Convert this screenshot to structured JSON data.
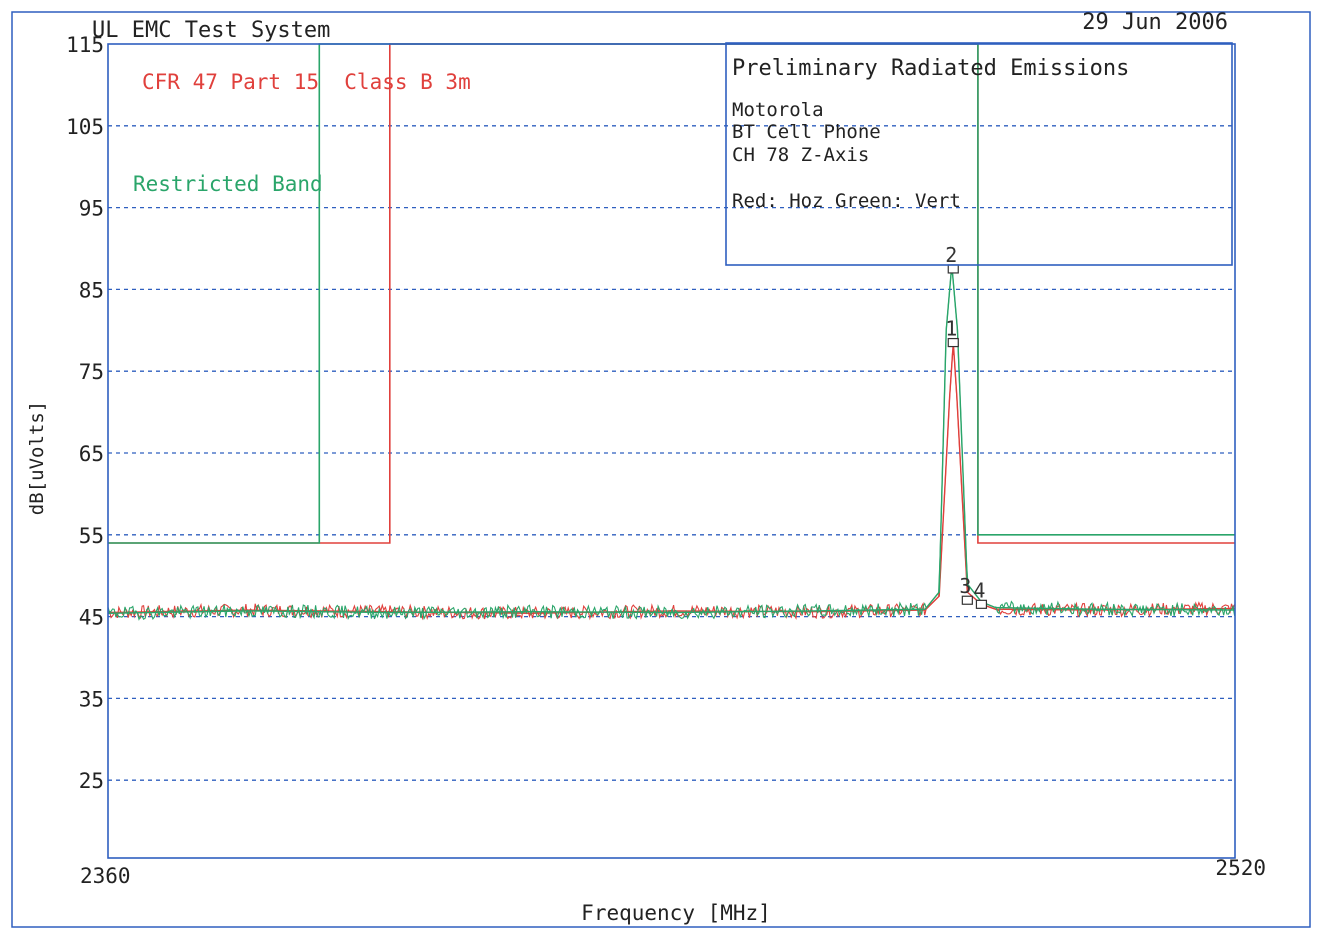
{
  "header": {
    "system_title": "UL EMC Test System",
    "date": "29 Jun 2006"
  },
  "info_box": {
    "title": "Preliminary Radiated Emissions",
    "lines": [
      "Motorola",
      "BT Cell Phone",
      "CH 78 Z-Axis"
    ],
    "legend_text": "Red: Hoz Green: Vert"
  },
  "annotations": {
    "limit_label": "CFR 47 Part 15  Class B 3m",
    "restricted_label": "Restricted Band"
  },
  "colors": {
    "frame": "#2f5fbf",
    "grid": "#2f5fbf",
    "red": "#e0403c",
    "green": "#2aa56a",
    "text": "#222222"
  },
  "chart_data": {
    "type": "line",
    "title": "Preliminary Radiated Emissions",
    "xlabel": "Frequency [MHz]",
    "ylabel": "dB[uVolts]",
    "xlim": [
      2360,
      2520
    ],
    "ylim": [
      15,
      115
    ],
    "x_tick_labels": [
      "2360",
      "2520"
    ],
    "y_ticks": [
      115,
      105,
      95,
      85,
      75,
      65,
      55,
      45,
      35,
      25
    ],
    "grid": "horizontal dashed",
    "series": [
      {
        "name": "Hoz",
        "color": "red",
        "x": [
          2360,
          2380,
          2400,
          2420,
          2440,
          2460,
          2476,
          2478,
          2479.5,
          2480,
          2480.5,
          2482,
          2484,
          2486,
          2500,
          2520
        ],
        "y": [
          45.5,
          45.8,
          45.6,
          45.4,
          45.7,
          45.6,
          45.8,
          47.5,
          72,
          78.5,
          72,
          48,
          46.5,
          45.9,
          45.8,
          46.0
        ]
      },
      {
        "name": "Vert",
        "color": "green",
        "x": [
          2360,
          2380,
          2400,
          2420,
          2440,
          2460,
          2476,
          2478,
          2479,
          2479.8,
          2480.6,
          2482,
          2484,
          2486,
          2500,
          2520
        ],
        "y": [
          45.4,
          45.7,
          45.5,
          45.6,
          45.5,
          45.7,
          45.9,
          48,
          80,
          88,
          80,
          49,
          46.8,
          46.1,
          45.9,
          45.8
        ]
      }
    ],
    "limit_lines": [
      {
        "name": "Class B 3m limit (red)",
        "color": "red",
        "x": [
          2360,
          2400,
          2400,
          2483.5,
          2483.5,
          2520
        ],
        "y": [
          54,
          54,
          115,
          115,
          54,
          54
        ]
      },
      {
        "name": "Restricted band limit (green)",
        "color": "green",
        "x": [
          2360,
          2390,
          2390,
          2483.5,
          2483.5,
          2520
        ],
        "y": [
          54,
          54,
          115,
          115,
          55,
          55
        ]
      }
    ],
    "markers": [
      {
        "label": "1",
        "x": 2480,
        "y": 78.5
      },
      {
        "label": "2",
        "x": 2480,
        "y": 87.5
      },
      {
        "label": "3",
        "x": 2482,
        "y": 47
      },
      {
        "label": "4",
        "x": 2484,
        "y": 46.5
      }
    ]
  }
}
